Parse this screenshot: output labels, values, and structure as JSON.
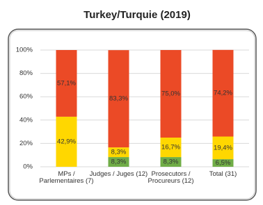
{
  "chart_data": {
    "type": "stacked-bar",
    "title": "Turkey/Turquie (2019)",
    "categories": [
      [
        "MPs /",
        "Parlementaires (7)"
      ],
      [
        "Judges / Juges (12)"
      ],
      [
        "Prosecutors /",
        "Procureurs (12)"
      ],
      [
        "Total (31)"
      ]
    ],
    "series": [
      {
        "color": "#70ad47",
        "values": [
          0,
          8.3,
          8.3,
          6.5
        ],
        "value_labels": [
          null,
          "8,3%",
          "8,3%",
          "6,5%"
        ]
      },
      {
        "color": "#ffd700",
        "values": [
          42.9,
          8.3,
          16.7,
          19.4
        ],
        "value_labels": [
          "42,9%",
          "8,3%",
          "16,7%",
          "19,4%"
        ]
      },
      {
        "color": "#eb4a26",
        "values": [
          57.1,
          83.3,
          75.0,
          74.2
        ],
        "value_labels": [
          "57,1%",
          "83,3%",
          "75,0%",
          "74,2%"
        ]
      }
    ],
    "ylim": [
      0,
      100
    ],
    "yticks": [
      {
        "value": 0,
        "label": "0%"
      },
      {
        "value": 20,
        "label": "20%"
      },
      {
        "value": 40,
        "label": "40%"
      },
      {
        "value": 60,
        "label": "60%"
      },
      {
        "value": 80,
        "label": "80%"
      },
      {
        "value": 100,
        "label": "100%"
      }
    ],
    "grid": true
  }
}
